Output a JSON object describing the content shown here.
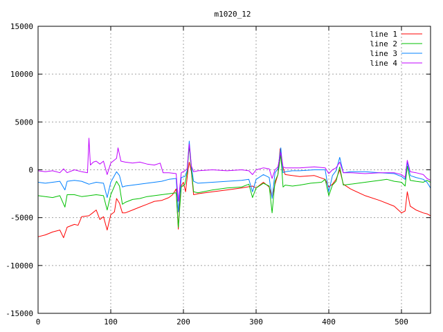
{
  "chart_data": {
    "type": "line",
    "title": "m1020_12",
    "xlabel": "",
    "ylabel": "",
    "xlim": [
      0,
      540
    ],
    "ylim": [
      -15000,
      15000
    ],
    "x_ticks": [
      0,
      100,
      200,
      300,
      400,
      500
    ],
    "y_ticks": [
      -15000,
      -10000,
      -5000,
      0,
      5000,
      10000,
      15000
    ],
    "grid": true,
    "legend_position": "top-right",
    "series": [
      {
        "name": "line 1",
        "color": "#ff0000",
        "points": [
          [
            0,
            -7000
          ],
          [
            10,
            -6800
          ],
          [
            20,
            -6500
          ],
          [
            30,
            -6300
          ],
          [
            35,
            -7100
          ],
          [
            40,
            -6000
          ],
          [
            50,
            -5700
          ],
          [
            55,
            -5800
          ],
          [
            60,
            -4900
          ],
          [
            70,
            -4800
          ],
          [
            75,
            -4500
          ],
          [
            80,
            -4200
          ],
          [
            85,
            -5200
          ],
          [
            90,
            -4900
          ],
          [
            95,
            -6300
          ],
          [
            100,
            -4700
          ],
          [
            105,
            -4400
          ],
          [
            108,
            -3000
          ],
          [
            112,
            -3500
          ],
          [
            116,
            -4500
          ],
          [
            120,
            -4500
          ],
          [
            130,
            -4200
          ],
          [
            140,
            -3900
          ],
          [
            150,
            -3600
          ],
          [
            160,
            -3300
          ],
          [
            170,
            -3200
          ],
          [
            180,
            -2900
          ],
          [
            185,
            -2600
          ],
          [
            190,
            -2000
          ],
          [
            193,
            -6200
          ],
          [
            196,
            -1800
          ],
          [
            200,
            -1300
          ],
          [
            203,
            -2300
          ],
          [
            206,
            -200
          ],
          [
            208,
            800
          ],
          [
            211,
            -200
          ],
          [
            214,
            -2600
          ],
          [
            220,
            -2500
          ],
          [
            240,
            -2300
          ],
          [
            260,
            -2100
          ],
          [
            280,
            -1900
          ],
          [
            295,
            -1700
          ],
          [
            300,
            -1900
          ],
          [
            310,
            -1300
          ],
          [
            318,
            -1800
          ],
          [
            322,
            -2900
          ],
          [
            326,
            -1500
          ],
          [
            330,
            -500
          ],
          [
            333,
            2200
          ],
          [
            336,
            500
          ],
          [
            340,
            -500
          ],
          [
            360,
            -700
          ],
          [
            380,
            -600
          ],
          [
            395,
            -1000
          ],
          [
            400,
            -1800
          ],
          [
            405,
            -1500
          ],
          [
            410,
            -1000
          ],
          [
            415,
            0
          ],
          [
            420,
            -1500
          ],
          [
            430,
            -2000
          ],
          [
            450,
            -2700
          ],
          [
            470,
            -3200
          ],
          [
            490,
            -3800
          ],
          [
            500,
            -4500
          ],
          [
            505,
            -4300
          ],
          [
            508,
            -2300
          ],
          [
            512,
            -3800
          ],
          [
            520,
            -4200
          ],
          [
            530,
            -4500
          ],
          [
            535,
            -4600
          ],
          [
            540,
            -4800
          ]
        ]
      },
      {
        "name": "line 2",
        "color": "#00c000",
        "points": [
          [
            0,
            -2700
          ],
          [
            10,
            -2800
          ],
          [
            20,
            -2900
          ],
          [
            30,
            -2700
          ],
          [
            37,
            -3900
          ],
          [
            40,
            -2600
          ],
          [
            50,
            -2600
          ],
          [
            60,
            -2800
          ],
          [
            70,
            -2700
          ],
          [
            80,
            -2600
          ],
          [
            90,
            -2700
          ],
          [
            95,
            -4200
          ],
          [
            100,
            -2600
          ],
          [
            108,
            -1200
          ],
          [
            112,
            -1700
          ],
          [
            116,
            -3600
          ],
          [
            120,
            -3400
          ],
          [
            130,
            -3100
          ],
          [
            140,
            -3000
          ],
          [
            150,
            -2800
          ],
          [
            160,
            -2700
          ],
          [
            170,
            -2600
          ],
          [
            180,
            -2500
          ],
          [
            190,
            -2400
          ],
          [
            193,
            -6000
          ],
          [
            197,
            -1800
          ],
          [
            202,
            -1500
          ],
          [
            205,
            -300
          ],
          [
            208,
            2500
          ],
          [
            211,
            0
          ],
          [
            214,
            -2300
          ],
          [
            220,
            -2400
          ],
          [
            240,
            -2100
          ],
          [
            260,
            -1900
          ],
          [
            280,
            -1800
          ],
          [
            290,
            -1500
          ],
          [
            295,
            -2900
          ],
          [
            300,
            -1900
          ],
          [
            310,
            -1400
          ],
          [
            318,
            -1700
          ],
          [
            322,
            -4500
          ],
          [
            326,
            -1200
          ],
          [
            330,
            -500
          ],
          [
            334,
            1600
          ],
          [
            337,
            -1800
          ],
          [
            340,
            -1600
          ],
          [
            350,
            -1700
          ],
          [
            360,
            -1600
          ],
          [
            375,
            -1400
          ],
          [
            390,
            -1300
          ],
          [
            395,
            -1000
          ],
          [
            400,
            -2700
          ],
          [
            405,
            -1600
          ],
          [
            410,
            -1200
          ],
          [
            415,
            300
          ],
          [
            420,
            -1600
          ],
          [
            430,
            -1500
          ],
          [
            450,
            -1300
          ],
          [
            470,
            -1100
          ],
          [
            480,
            -1000
          ],
          [
            490,
            -1200
          ],
          [
            500,
            -1300
          ],
          [
            505,
            -1700
          ],
          [
            508,
            400
          ],
          [
            512,
            -1100
          ],
          [
            520,
            -1200
          ],
          [
            530,
            -1300
          ],
          [
            535,
            -1100
          ],
          [
            540,
            -1300
          ]
        ]
      },
      {
        "name": "line 3",
        "color": "#0080ff",
        "points": [
          [
            0,
            -1300
          ],
          [
            10,
            -1400
          ],
          [
            20,
            -1300
          ],
          [
            30,
            -1200
          ],
          [
            37,
            -2100
          ],
          [
            40,
            -1200
          ],
          [
            50,
            -1100
          ],
          [
            60,
            -1200
          ],
          [
            70,
            -1500
          ],
          [
            80,
            -1300
          ],
          [
            90,
            -1400
          ],
          [
            95,
            -2900
          ],
          [
            100,
            -1300
          ],
          [
            108,
            -200
          ],
          [
            112,
            -600
          ],
          [
            116,
            -1800
          ],
          [
            120,
            -1700
          ],
          [
            130,
            -1600
          ],
          [
            140,
            -1500
          ],
          [
            150,
            -1400
          ],
          [
            160,
            -1300
          ],
          [
            170,
            -1200
          ],
          [
            180,
            -1000
          ],
          [
            190,
            -900
          ],
          [
            193,
            -4400
          ],
          [
            197,
            -800
          ],
          [
            202,
            -700
          ],
          [
            205,
            -100
          ],
          [
            208,
            3000
          ],
          [
            211,
            300
          ],
          [
            214,
            -1200
          ],
          [
            220,
            -1400
          ],
          [
            240,
            -1300
          ],
          [
            260,
            -1200
          ],
          [
            280,
            -1100
          ],
          [
            290,
            -1000
          ],
          [
            295,
            -2300
          ],
          [
            300,
            -1000
          ],
          [
            310,
            -500
          ],
          [
            318,
            -800
          ],
          [
            322,
            -3000
          ],
          [
            326,
            -300
          ],
          [
            330,
            100
          ],
          [
            334,
            2300
          ],
          [
            337,
            -300
          ],
          [
            340,
            -200
          ],
          [
            350,
            -100
          ],
          [
            360,
            -100
          ],
          [
            380,
            0
          ],
          [
            395,
            0
          ],
          [
            400,
            -2300
          ],
          [
            405,
            -600
          ],
          [
            410,
            -100
          ],
          [
            415,
            1300
          ],
          [
            420,
            -300
          ],
          [
            430,
            -200
          ],
          [
            450,
            -200
          ],
          [
            470,
            -300
          ],
          [
            490,
            -400
          ],
          [
            500,
            -700
          ],
          [
            505,
            -1000
          ],
          [
            508,
            800
          ],
          [
            512,
            -600
          ],
          [
            520,
            -800
          ],
          [
            530,
            -1000
          ],
          [
            535,
            -1300
          ],
          [
            540,
            -1900
          ]
        ]
      },
      {
        "name": "line 4",
        "color": "#c000ff",
        "points": [
          [
            0,
            -100
          ],
          [
            10,
            -200
          ],
          [
            20,
            -100
          ],
          [
            30,
            -300
          ],
          [
            35,
            100
          ],
          [
            40,
            -300
          ],
          [
            50,
            0
          ],
          [
            60,
            -200
          ],
          [
            68,
            -300
          ],
          [
            70,
            3300
          ],
          [
            72,
            500
          ],
          [
            76,
            800
          ],
          [
            80,
            900
          ],
          [
            85,
            600
          ],
          [
            90,
            900
          ],
          [
            95,
            -500
          ],
          [
            100,
            700
          ],
          [
            108,
            1200
          ],
          [
            110,
            2300
          ],
          [
            114,
            900
          ],
          [
            120,
            800
          ],
          [
            130,
            700
          ],
          [
            140,
            800
          ],
          [
            150,
            600
          ],
          [
            160,
            500
          ],
          [
            168,
            700
          ],
          [
            172,
            -300
          ],
          [
            180,
            -300
          ],
          [
            190,
            -400
          ],
          [
            193,
            -3300
          ],
          [
            197,
            -300
          ],
          [
            202,
            -100
          ],
          [
            205,
            100
          ],
          [
            208,
            2700
          ],
          [
            211,
            400
          ],
          [
            214,
            -200
          ],
          [
            220,
            -100
          ],
          [
            240,
            0
          ],
          [
            260,
            -100
          ],
          [
            280,
            0
          ],
          [
            290,
            -100
          ],
          [
            295,
            -500
          ],
          [
            300,
            0
          ],
          [
            310,
            200
          ],
          [
            318,
            100
          ],
          [
            322,
            -900
          ],
          [
            326,
            0
          ],
          [
            330,
            300
          ],
          [
            334,
            1800
          ],
          [
            337,
            300
          ],
          [
            340,
            200
          ],
          [
            360,
            200
          ],
          [
            380,
            300
          ],
          [
            395,
            200
          ],
          [
            400,
            -400
          ],
          [
            405,
            0
          ],
          [
            410,
            200
          ],
          [
            415,
            800
          ],
          [
            420,
            -300
          ],
          [
            430,
            -300
          ],
          [
            450,
            -400
          ],
          [
            470,
            -300
          ],
          [
            490,
            -300
          ],
          [
            500,
            -500
          ],
          [
            505,
            -800
          ],
          [
            508,
            1000
          ],
          [
            512,
            -200
          ],
          [
            520,
            -300
          ],
          [
            530,
            -500
          ],
          [
            535,
            -900
          ],
          [
            540,
            -1100
          ]
        ]
      }
    ]
  }
}
